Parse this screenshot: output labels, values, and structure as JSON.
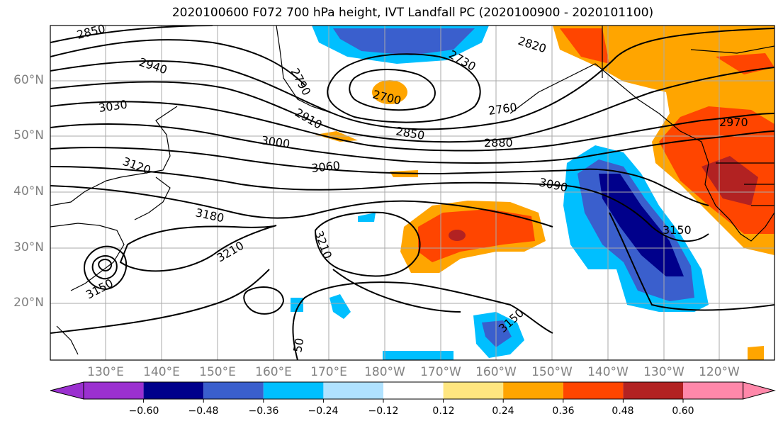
{
  "title": "2020100600 F072 700 hPa height, IVT Landfall PC (2020100900 - 2020101100)",
  "map": {
    "lat_labels": [
      "60°N",
      "50°N",
      "40°N",
      "30°N",
      "20°N"
    ],
    "lon_labels": [
      "130°E",
      "140°E",
      "150°E",
      "160°E",
      "170°E",
      "180°W",
      "170°W",
      "160°W",
      "150°W",
      "140°W",
      "130°W",
      "120°W"
    ],
    "contour_labels": [
      "2850",
      "2940",
      "3030",
      "3120",
      "3180",
      "3150",
      "3210",
      "3210",
      "2790",
      "2910",
      "2700",
      "2760",
      "2850",
      "2880",
      "3000",
      "3060",
      "3090",
      "3150",
      "2820",
      "2730",
      "2970",
      "3150",
      "50"
    ]
  },
  "colorbar": {
    "tick_labels": [
      "−0.60",
      "−0.48",
      "−0.36",
      "−0.24",
      "−0.12",
      "0.12",
      "0.24",
      "0.36",
      "0.48",
      "0.60"
    ],
    "colors": [
      "#9b30d0",
      "#00008b",
      "#3a5fcd",
      "#00bfff",
      "#b0e2ff",
      "#ffffff",
      "#ffe680",
      "#ffa500",
      "#ff4500",
      "#b22222",
      "#ff88aa"
    ]
  }
}
